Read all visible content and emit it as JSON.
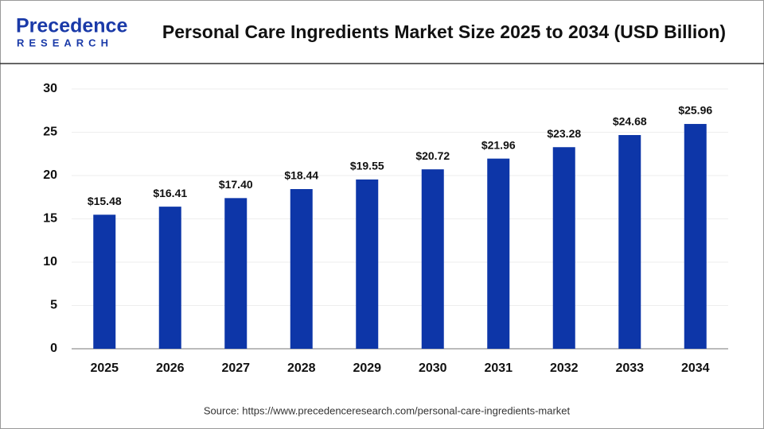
{
  "brand": {
    "name": "Precedence",
    "tagline": "RESEARCH"
  },
  "chart_data": {
    "type": "bar",
    "title": "Personal Care Ingredients Market Size 2025 to 2034 (USD Billion)",
    "categories": [
      "2025",
      "2026",
      "2027",
      "2028",
      "2029",
      "2030",
      "2031",
      "2032",
      "2033",
      "2034"
    ],
    "values": [
      15.48,
      16.41,
      17.4,
      18.44,
      19.55,
      20.72,
      21.96,
      23.28,
      24.68,
      25.96
    ],
    "value_labels": [
      "$15.48",
      "$16.41",
      "$17.40",
      "$18.44",
      "$19.55",
      "$20.72",
      "$21.96",
      "$23.28",
      "$24.68",
      "$25.96"
    ],
    "color": "#0d36a8",
    "ylim": [
      0,
      30
    ],
    "yticks": [
      0,
      5,
      10,
      15,
      20,
      25,
      30
    ],
    "grid": true,
    "source": "Source: https://www.precedenceresearch.com/personal-care-ingredients-market"
  }
}
